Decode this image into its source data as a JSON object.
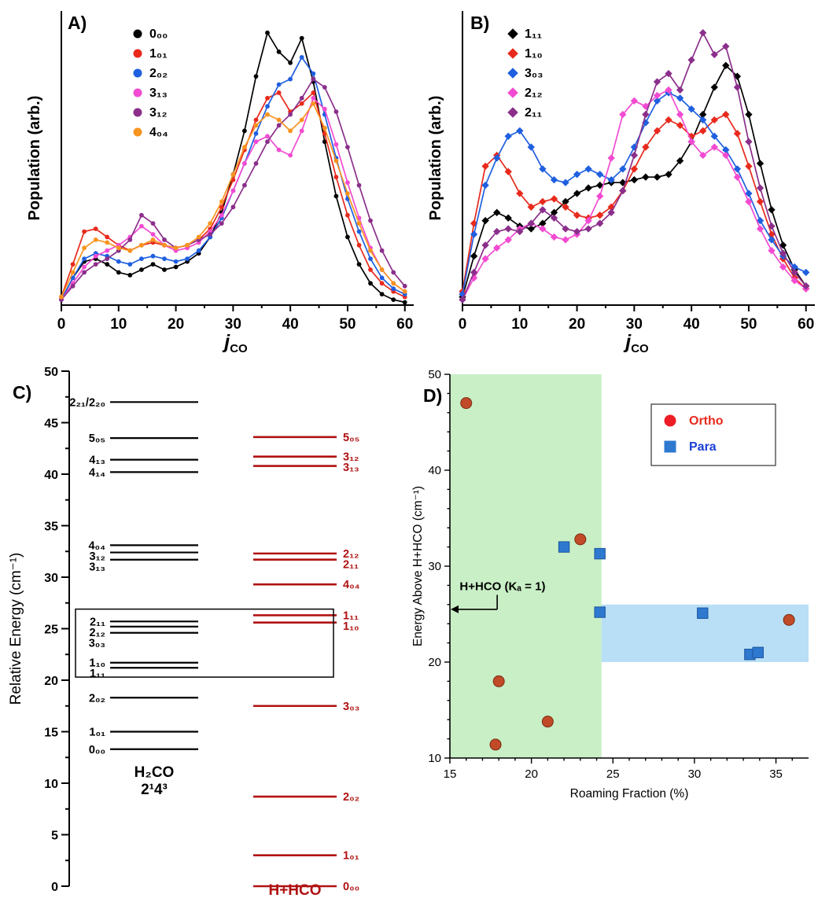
{
  "figure": {
    "panels": {
      "A": {
        "label": "A)"
      },
      "B": {
        "label": "B)"
      },
      "C": {
        "label": "C)"
      },
      "D": {
        "label": "D)"
      }
    }
  },
  "chart_data": [
    {
      "id": "A",
      "type": "line",
      "marker": "circle",
      "xlabel_main": "j",
      "xlabel_sub": "CO",
      "ylabel": "Population (arb.)",
      "xlim": [
        0,
        61
      ],
      "ylim": [
        0,
        1.08
      ],
      "xticks": [
        0,
        10,
        20,
        30,
        40,
        50,
        60
      ],
      "x": [
        0,
        2,
        4,
        6,
        8,
        10,
        12,
        14,
        16,
        18,
        20,
        22,
        24,
        26,
        28,
        30,
        32,
        34,
        36,
        38,
        40,
        42,
        44,
        46,
        48,
        50,
        52,
        54,
        56,
        58,
        60
      ],
      "series": [
        {
          "name": "0₀₀",
          "color": "#000000",
          "values": [
            0.02,
            0.1,
            0.16,
            0.17,
            0.15,
            0.12,
            0.11,
            0.13,
            0.15,
            0.13,
            0.14,
            0.16,
            0.19,
            0.25,
            0.34,
            0.48,
            0.64,
            0.84,
            1.0,
            0.93,
            0.89,
            0.98,
            0.82,
            0.6,
            0.4,
            0.25,
            0.15,
            0.08,
            0.04,
            0.02,
            0.01
          ]
        },
        {
          "name": "1₀₁",
          "color": "#e8291c",
          "values": [
            0.03,
            0.15,
            0.27,
            0.28,
            0.25,
            0.22,
            0.2,
            0.22,
            0.23,
            0.22,
            0.21,
            0.22,
            0.24,
            0.28,
            0.36,
            0.46,
            0.57,
            0.68,
            0.76,
            0.78,
            0.71,
            0.74,
            0.78,
            0.63,
            0.47,
            0.33,
            0.22,
            0.13,
            0.08,
            0.05,
            0.03
          ]
        },
        {
          "name": "2₀₂",
          "color": "#1f5fe0",
          "values": [
            0.02,
            0.1,
            0.17,
            0.19,
            0.18,
            0.16,
            0.15,
            0.17,
            0.18,
            0.17,
            0.16,
            0.17,
            0.2,
            0.25,
            0.32,
            0.42,
            0.52,
            0.63,
            0.73,
            0.81,
            0.83,
            0.91,
            0.85,
            0.7,
            0.54,
            0.39,
            0.27,
            0.17,
            0.1,
            0.06,
            0.04
          ]
        },
        {
          "name": "3₁₃",
          "color": "#f24bd2",
          "values": [
            0.02,
            0.08,
            0.14,
            0.18,
            0.2,
            0.22,
            0.25,
            0.29,
            0.26,
            0.22,
            0.2,
            0.21,
            0.23,
            0.27,
            0.33,
            0.42,
            0.52,
            0.6,
            0.62,
            0.57,
            0.55,
            0.64,
            0.76,
            0.72,
            0.59,
            0.45,
            0.32,
            0.21,
            0.13,
            0.08,
            0.05
          ]
        },
        {
          "name": "3₁₂",
          "color": "#8b2f8b",
          "values": [
            0.02,
            0.07,
            0.12,
            0.15,
            0.17,
            0.2,
            0.24,
            0.33,
            0.3,
            0.24,
            0.21,
            0.22,
            0.24,
            0.26,
            0.3,
            0.36,
            0.44,
            0.52,
            0.6,
            0.66,
            0.7,
            0.76,
            0.83,
            0.8,
            0.71,
            0.58,
            0.44,
            0.31,
            0.2,
            0.12,
            0.07
          ]
        },
        {
          "name": "4₀₄",
          "color": "#f79420",
          "values": [
            0.03,
            0.12,
            0.21,
            0.24,
            0.23,
            0.21,
            0.2,
            0.22,
            0.24,
            0.22,
            0.21,
            0.22,
            0.25,
            0.3,
            0.38,
            0.48,
            0.58,
            0.66,
            0.7,
            0.68,
            0.64,
            0.68,
            0.74,
            0.65,
            0.53,
            0.41,
            0.3,
            0.2,
            0.13,
            0.08,
            0.05
          ]
        }
      ]
    },
    {
      "id": "B",
      "type": "line",
      "marker": "diamond",
      "xlabel_main": "j",
      "xlabel_sub": "CO",
      "ylabel": "Population (arb.)",
      "xlim": [
        0,
        61
      ],
      "ylim": [
        0,
        1.08
      ],
      "xticks": [
        0,
        10,
        20,
        30,
        40,
        50,
        60
      ],
      "x": [
        0,
        2,
        4,
        6,
        8,
        10,
        12,
        14,
        16,
        18,
        20,
        22,
        24,
        26,
        28,
        30,
        32,
        34,
        36,
        38,
        40,
        42,
        44,
        46,
        48,
        50,
        52,
        54,
        56,
        58,
        60
      ],
      "series": [
        {
          "name": "1₁₁",
          "color": "#000000",
          "values": [
            0.03,
            0.18,
            0.31,
            0.34,
            0.32,
            0.29,
            0.28,
            0.3,
            0.34,
            0.38,
            0.41,
            0.43,
            0.44,
            0.45,
            0.45,
            0.46,
            0.47,
            0.47,
            0.48,
            0.53,
            0.6,
            0.7,
            0.8,
            0.88,
            0.84,
            0.7,
            0.52,
            0.35,
            0.22,
            0.13,
            0.07
          ]
        },
        {
          "name": "1₁₀",
          "color": "#e8291c",
          "values": [
            0.05,
            0.3,
            0.51,
            0.55,
            0.49,
            0.41,
            0.36,
            0.38,
            0.39,
            0.36,
            0.33,
            0.32,
            0.33,
            0.36,
            0.42,
            0.5,
            0.58,
            0.64,
            0.68,
            0.66,
            0.62,
            0.64,
            0.68,
            0.7,
            0.63,
            0.51,
            0.38,
            0.26,
            0.17,
            0.1,
            0.06
          ]
        },
        {
          "name": "3₀₃",
          "color": "#1f5fe0",
          "values": [
            0.04,
            0.26,
            0.44,
            0.54,
            0.62,
            0.64,
            0.58,
            0.5,
            0.46,
            0.45,
            0.48,
            0.5,
            0.48,
            0.46,
            0.5,
            0.58,
            0.67,
            0.75,
            0.78,
            0.76,
            0.72,
            0.68,
            0.62,
            0.57,
            0.5,
            0.41,
            0.31,
            0.24,
            0.18,
            0.14,
            0.12
          ]
        },
        {
          "name": "2₁₂",
          "color": "#f24bd2",
          "values": [
            0.02,
            0.1,
            0.17,
            0.21,
            0.24,
            0.28,
            0.3,
            0.28,
            0.25,
            0.24,
            0.26,
            0.31,
            0.4,
            0.54,
            0.7,
            0.75,
            0.73,
            0.77,
            0.79,
            0.7,
            0.6,
            0.55,
            0.58,
            0.55,
            0.47,
            0.38,
            0.28,
            0.2,
            0.14,
            0.09,
            0.06
          ]
        },
        {
          "name": "2₁₁",
          "color": "#8b2f8b",
          "values": [
            0.02,
            0.12,
            0.22,
            0.27,
            0.28,
            0.27,
            0.3,
            0.35,
            0.32,
            0.28,
            0.27,
            0.28,
            0.3,
            0.34,
            0.42,
            0.55,
            0.7,
            0.82,
            0.85,
            0.79,
            0.9,
            1.0,
            0.92,
            0.95,
            0.8,
            0.6,
            0.43,
            0.29,
            0.19,
            0.12,
            0.07
          ]
        }
      ]
    },
    {
      "id": "C",
      "type": "energy_levels",
      "ylabel": "Relative Energy (cm⁻¹)",
      "ylim": [
        0,
        50
      ],
      "ytick_major": 5,
      "ytick_minor": 2.5,
      "left_system": {
        "name_lines": [
          "H₂CO",
          "2¹4³"
        ],
        "color": "#000000",
        "levels": [
          {
            "label": "0₀₀",
            "energy": 13.3
          },
          {
            "label": "1₀₁",
            "energy": 15.0
          },
          {
            "label": "2₀₂",
            "energy": 18.3
          },
          {
            "label": "1₁₁",
            "energy": 21.2
          },
          {
            "label": "1₁₀",
            "energy": 21.7
          },
          {
            "label": "3₀₃",
            "energy": 24.6
          },
          {
            "label": "2₁₂",
            "energy": 25.2
          },
          {
            "label": "2₁₁",
            "energy": 25.7
          },
          {
            "label": "3₁₃",
            "energy": 31.7
          },
          {
            "label": "3₁₂",
            "energy": 32.4
          },
          {
            "label": "4₀₄",
            "energy": 33.1
          },
          {
            "label": "4₁₄",
            "energy": 40.2
          },
          {
            "label": "4₁₃",
            "energy": 41.4
          },
          {
            "label": "5₀₅",
            "energy": 43.5
          },
          {
            "label": "2₂₁/2₂₀",
            "energy": 47.0
          }
        ]
      },
      "right_system": {
        "name": "H+HCO",
        "color": "#b01212",
        "levels": [
          {
            "label": "0₀₀",
            "energy": 0.0
          },
          {
            "label": "1₀₁",
            "energy": 3.0
          },
          {
            "label": "2₀₂",
            "energy": 8.7
          },
          {
            "label": "3₀₃",
            "energy": 17.5
          },
          {
            "label": "1₁₀",
            "energy": 25.6
          },
          {
            "label": "1₁₁",
            "energy": 26.3
          },
          {
            "label": "4₀₄",
            "energy": 29.3
          },
          {
            "label": "2₁₁",
            "energy": 31.7
          },
          {
            "label": "2₁₂",
            "energy": 32.3
          },
          {
            "label": "3₁₃",
            "energy": 40.8
          },
          {
            "label": "3₁₂",
            "energy": 41.7
          },
          {
            "label": "5₀₅",
            "energy": 43.6
          }
        ]
      },
      "box": {
        "ymin": 20.3,
        "ymax": 26.9
      }
    },
    {
      "id": "D",
      "type": "scatter",
      "xlabel": "Roaming Fraction (%)",
      "ylabel": "Energy Above H+HCO (cm⁻¹)",
      "xlim": [
        15,
        37
      ],
      "ylim": [
        10,
        50
      ],
      "xticks": [
        15,
        20,
        25,
        30,
        35
      ],
      "yticks": [
        10,
        20,
        30,
        40,
        50
      ],
      "regions": {
        "green_band": {
          "x0": 15,
          "x1": 24.3,
          "color": "#c9efc6"
        },
        "blue_band": {
          "x0": 24.3,
          "x1": 37,
          "y0": 20,
          "y1": 26,
          "color": "#b8dff5"
        }
      },
      "annotation": {
        "text": "H+HCO (Kₐ = 1)",
        "text_x": 15.6,
        "text_y": 27.5,
        "elbow_x": 17.9,
        "arrow_y": 25.5
      },
      "legend": [
        {
          "label": "Ortho",
          "marker": "circle",
          "marker_color": "#ee1c24",
          "text_color": "#e8291c"
        },
        {
          "label": "Para",
          "marker": "square",
          "marker_color": "#2e79cf",
          "text_color": "#1a3fd4"
        }
      ],
      "series": [
        {
          "name": "Ortho",
          "marker": "circle",
          "fill": "#c14a28",
          "stroke": "#7d2d12",
          "points": [
            [
              16,
              47
            ],
            [
              23,
              32.8
            ],
            [
              35.8,
              24.4
            ],
            [
              18,
              18
            ],
            [
              21,
              13.8
            ],
            [
              17.8,
              11.4
            ]
          ]
        },
        {
          "name": "Para",
          "marker": "square",
          "fill": "#2e79cf",
          "stroke": "#1d55a0",
          "points": [
            [
              22,
              32
            ],
            [
              24.2,
              31.3
            ],
            [
              24.2,
              25.2
            ],
            [
              30.5,
              25.1
            ],
            [
              33.4,
              20.8
            ],
            [
              33.9,
              21.0
            ]
          ]
        }
      ]
    }
  ]
}
